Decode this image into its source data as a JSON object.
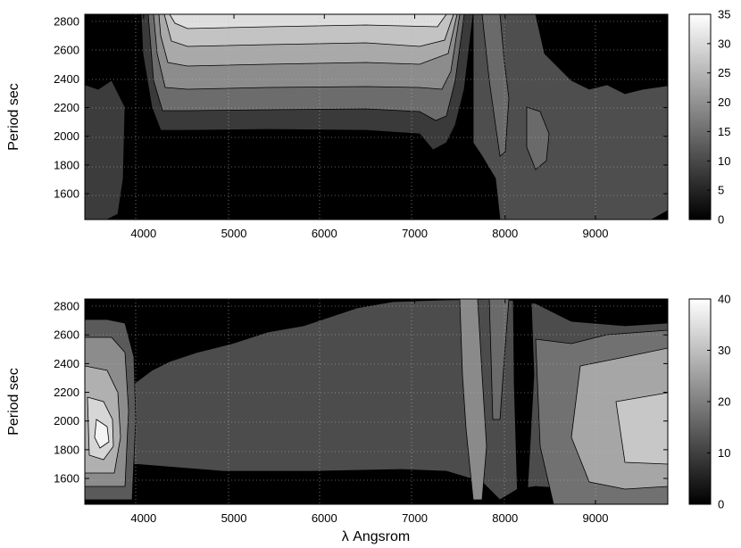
{
  "chart_data": [
    {
      "type": "heatmap",
      "title": "",
      "xlabel": "",
      "ylabel": "Period  sec",
      "xlim": [
        3350,
        9800
      ],
      "ylim": [
        1420,
        2850
      ],
      "xticks": [
        4000,
        5000,
        6000,
        7000,
        8000,
        9000
      ],
      "yticks": [
        1600,
        1800,
        2000,
        2200,
        2400,
        2600,
        2800
      ],
      "colorbar": {
        "range": [
          0,
          35
        ],
        "ticks": [
          0,
          5,
          10,
          15,
          20,
          25,
          30,
          35
        ]
      },
      "grid": true,
      "levels": [
        0,
        5,
        10,
        15,
        20,
        25,
        30,
        35
      ],
      "regions": [
        {
          "x_range": [
            3350,
            4100
          ],
          "y_range": [
            1420,
            2850
          ],
          "value": 2
        },
        {
          "x_range": [
            4150,
            7350
          ],
          "y_range": [
            2050,
            2850
          ],
          "value_bottom": 8,
          "value_top": 33
        },
        {
          "x_range": [
            4050,
            7400
          ],
          "y_range": [
            1420,
            2050
          ],
          "value": 1
        },
        {
          "x_range": [
            7400,
            8100
          ],
          "y_range": [
            2000,
            2850
          ],
          "value": 8
        },
        {
          "x_range": [
            8000,
            9800
          ],
          "y_range": [
            1500,
            2350
          ],
          "value": 8
        }
      ]
    },
    {
      "type": "heatmap",
      "title": "",
      "xlabel": "λ  Angsrom",
      "ylabel": "Period  sec",
      "xlim": [
        3350,
        9800
      ],
      "ylim": [
        1420,
        2850
      ],
      "xticks": [
        4000,
        5000,
        6000,
        7000,
        8000,
        9000
      ],
      "yticks": [
        1600,
        1800,
        2000,
        2200,
        2400,
        2600,
        2800
      ],
      "colorbar": {
        "range": [
          0,
          40
        ],
        "ticks": [
          0,
          10,
          20,
          30,
          40
        ]
      },
      "grid": true,
      "levels": [
        0,
        5,
        10,
        15,
        20,
        25,
        30,
        35,
        40
      ],
      "regions": [
        {
          "x_range": [
            3350,
            3950
          ],
          "y_range": [
            1500,
            2750
          ],
          "value_center": 38,
          "center": [
            3650,
            1900
          ]
        },
        {
          "x_range": [
            4000,
            7600
          ],
          "y_range": [
            1680,
            2650
          ],
          "value": 12
        },
        {
          "x_range": [
            7600,
            8100
          ],
          "y_range": [
            1420,
            2850
          ],
          "value": 14
        },
        {
          "x_range": [
            8100,
            8250
          ],
          "y_range": [
            1420,
            2850
          ],
          "value": 1
        },
        {
          "x_range": [
            8500,
            9800
          ],
          "y_range": [
            1420,
            2600
          ],
          "value": 18
        }
      ]
    }
  ]
}
